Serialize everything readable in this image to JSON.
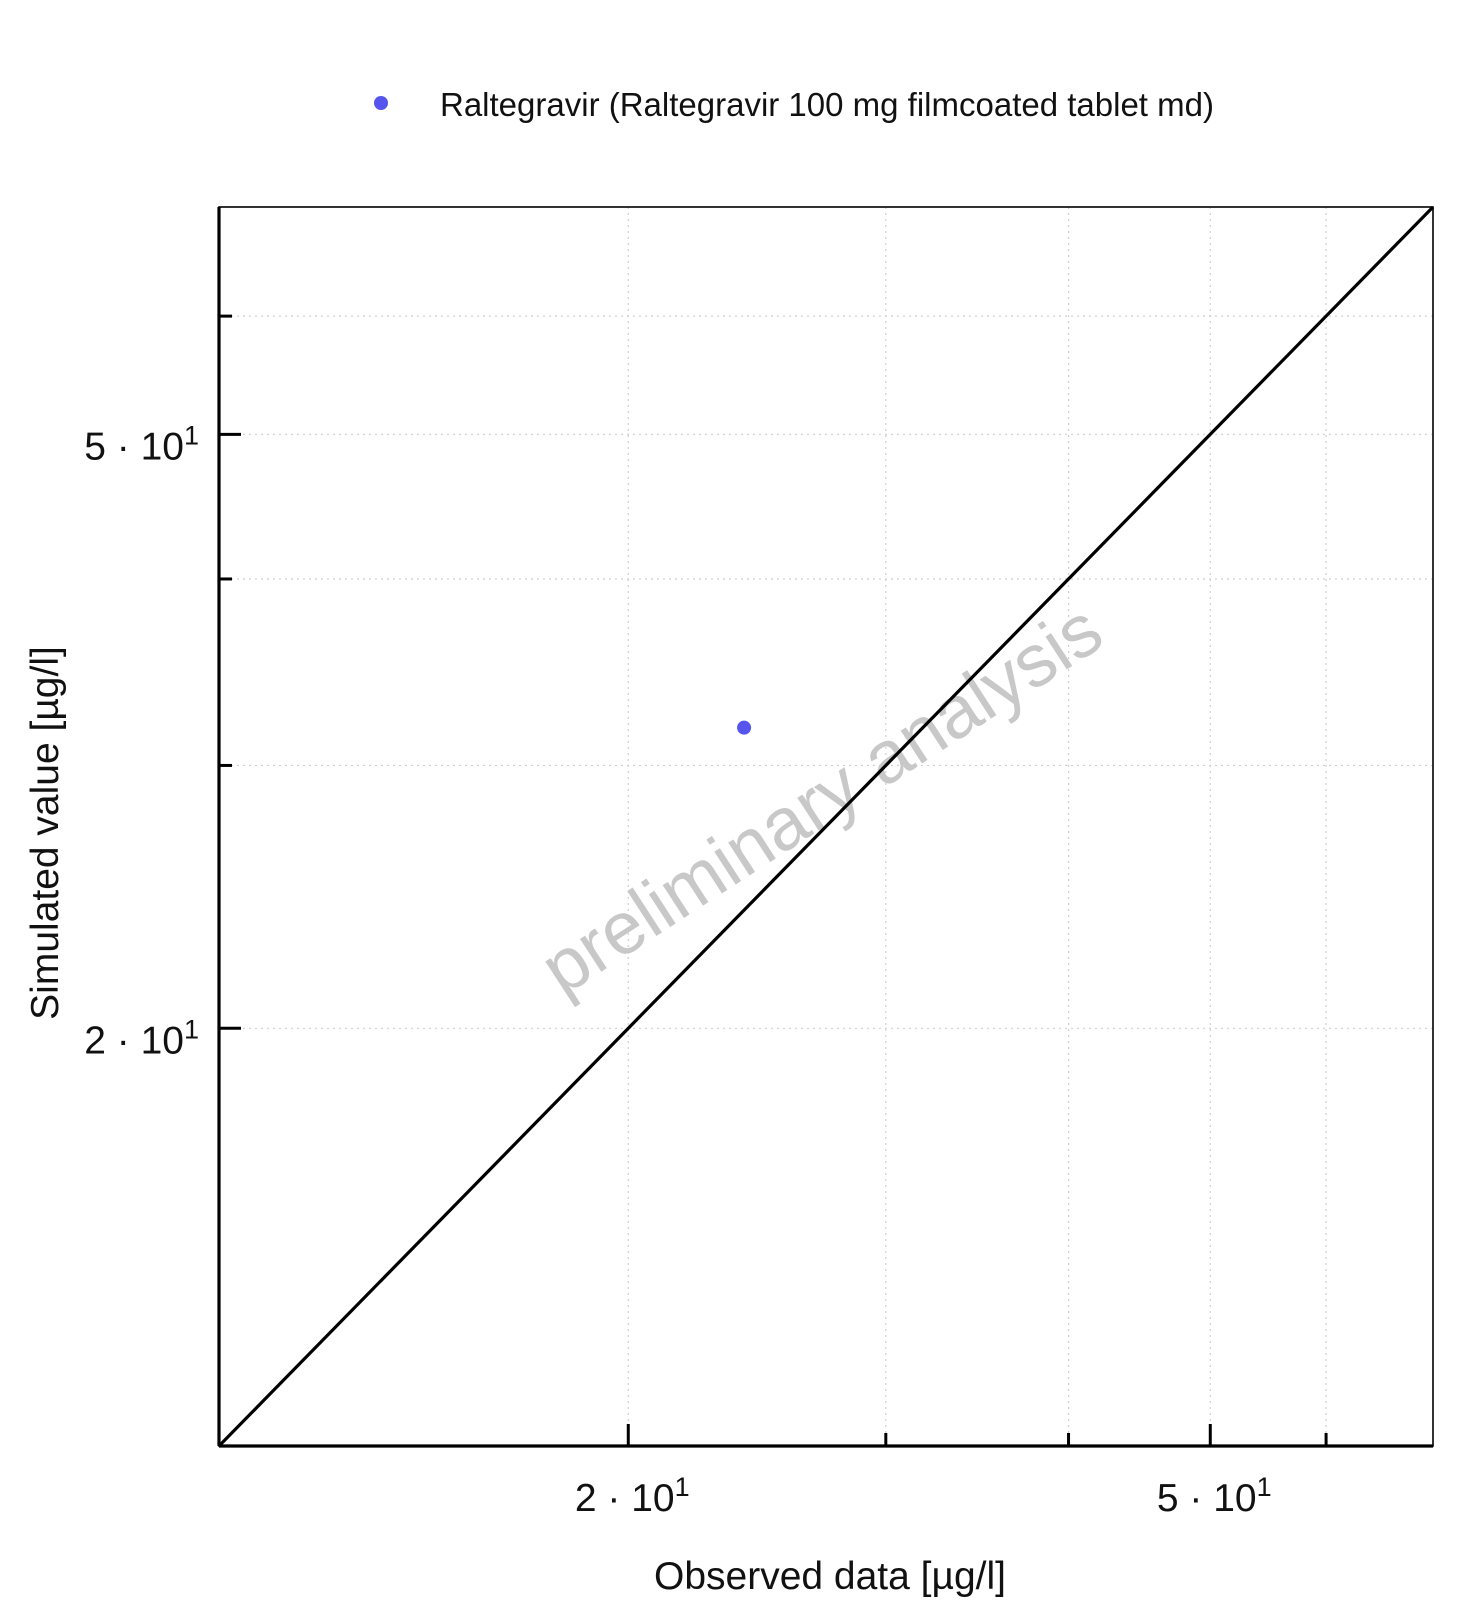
{
  "chart_data": {
    "type": "scatter",
    "title": "",
    "xlabel": "Observed data [µg/l]",
    "ylabel": "Simulated value [µg/l]",
    "x_scale": "log",
    "y_scale": "log",
    "xlim": [
      10.5,
      71
    ],
    "ylim": [
      10.5,
      71
    ],
    "grid": true,
    "legend_position": "top",
    "x_ticks": [
      {
        "value": 20,
        "mantissa": "2",
        "base": "10",
        "exponent": "1"
      },
      {
        "value": 50,
        "mantissa": "5",
        "base": "10",
        "exponent": "1"
      }
    ],
    "y_ticks": [
      {
        "value": 20,
        "mantissa": "2",
        "base": "10",
        "exponent": "1"
      },
      {
        "value": 50,
        "mantissa": "5",
        "base": "10",
        "exponent": "1"
      }
    ],
    "minor_ticks": [
      30,
      40,
      60
    ],
    "series": [
      {
        "name": "Raltegravir (Raltegravir 100 mg filmcoated tablet md)",
        "color": "#5555ee",
        "points": [
          {
            "x": 24,
            "y": 31.8
          }
        ]
      }
    ],
    "identity_line": {
      "color": "#000000"
    },
    "watermark": "preliminary analysis"
  }
}
